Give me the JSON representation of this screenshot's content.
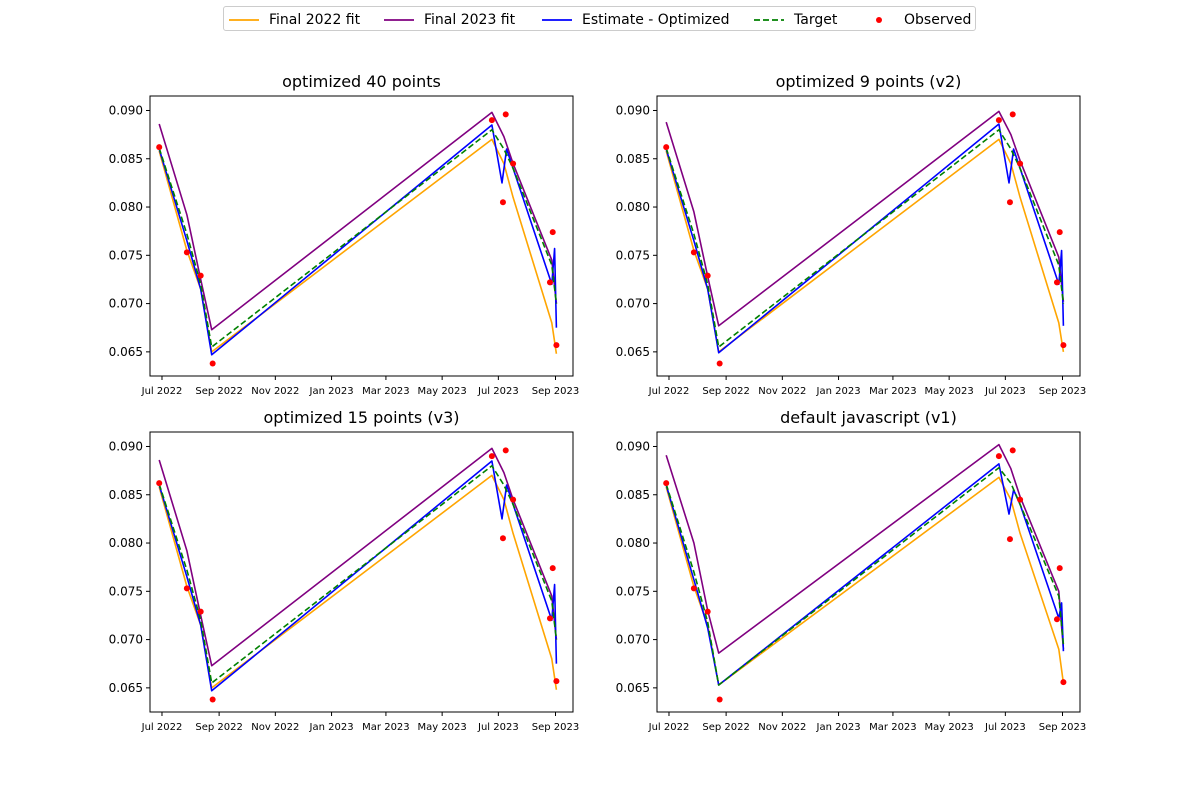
{
  "legend": [
    {
      "label": "Final 2022 fit",
      "color": "#FFA500",
      "style": "solid"
    },
    {
      "label": "Final 2023 fit",
      "color": "#800080",
      "style": "solid"
    },
    {
      "label": "Estimate - Optimized",
      "color": "#0000FF",
      "style": "solid"
    },
    {
      "label": "Target",
      "color": "#008000",
      "style": "dashed"
    },
    {
      "label": "Observed",
      "color": "#FF0000",
      "style": "dot"
    }
  ],
  "chart_data": [
    {
      "type": "line",
      "title": "optimized 40 points",
      "ylim": [
        0.0625,
        0.0915
      ],
      "xlim": [
        "2022-06-18",
        "2023-09-20"
      ],
      "yticks": [
        "0.065",
        "0.070",
        "0.075",
        "0.080",
        "0.085",
        "0.090"
      ],
      "xticks": [
        "Jul 2022",
        "Sep 2022",
        "Nov 2022",
        "Jan 2023",
        "Mar 2023",
        "May 2023",
        "Jul 2023",
        "Sep 2023"
      ],
      "series": [
        {
          "name": "Final 2022 fit",
          "x": [
            "2022-06-28",
            "2022-07-28",
            "2022-08-12",
            "2022-08-24",
            "2023-06-24",
            "2023-07-07",
            "2023-07-17",
            "2023-08-28",
            "2023-09-02"
          ],
          "y": [
            0.0858,
            0.0755,
            0.0715,
            0.065,
            0.087,
            0.0845,
            0.081,
            0.068,
            0.0648
          ]
        },
        {
          "name": "Final 2023 fit",
          "x": [
            "2022-06-28",
            "2022-07-28",
            "2022-08-12",
            "2022-08-24",
            "2023-06-24",
            "2023-07-07",
            "2023-07-17",
            "2023-08-28",
            "2023-09-02"
          ],
          "y": [
            0.0886,
            0.0792,
            0.0725,
            0.0673,
            0.0898,
            0.0873,
            0.0845,
            0.0745,
            0.07
          ]
        },
        {
          "name": "Estimate - Optimized",
          "x": [
            "2022-06-28",
            "2022-07-28",
            "2022-08-12",
            "2022-08-24",
            "2023-06-24",
            "2023-07-05",
            "2023-07-10",
            "2023-07-17",
            "2023-08-28",
            "2023-08-31",
            "2023-09-02"
          ],
          "y": [
            0.086,
            0.0765,
            0.0715,
            0.0647,
            0.0885,
            0.0825,
            0.086,
            0.084,
            0.072,
            0.0757,
            0.0675
          ]
        },
        {
          "name": "Target",
          "x": [
            "2022-06-28",
            "2022-07-28",
            "2022-08-12",
            "2022-08-24",
            "2023-06-24",
            "2023-07-07",
            "2023-07-17",
            "2023-08-28",
            "2023-09-02"
          ],
          "y": [
            0.0861,
            0.0772,
            0.072,
            0.0655,
            0.088,
            0.086,
            0.084,
            0.074,
            0.07
          ]
        }
      ],
      "observed": {
        "name": "Observed",
        "x": [
          "2022-06-28",
          "2022-07-28",
          "2022-08-12",
          "2022-08-25",
          "2023-06-24",
          "2023-07-06",
          "2023-07-09",
          "2023-07-17",
          "2023-08-26",
          "2023-08-29",
          "2023-09-02"
        ],
        "y": [
          0.0862,
          0.0753,
          0.0729,
          0.0638,
          0.089,
          0.0805,
          0.0896,
          0.0845,
          0.0722,
          0.0774,
          0.0657
        ]
      }
    },
    {
      "type": "line",
      "title": "optimized 9 points (v2)",
      "ylim": [
        0.0625,
        0.0915
      ],
      "xlim": [
        "2022-06-18",
        "2023-09-20"
      ],
      "yticks": [
        "0.065",
        "0.070",
        "0.075",
        "0.080",
        "0.085",
        "0.090"
      ],
      "xticks": [
        "Jul 2022",
        "Sep 2022",
        "Nov 2022",
        "Jan 2023",
        "Mar 2023",
        "May 2023",
        "Jul 2023",
        "Sep 2023"
      ],
      "series": [
        {
          "name": "Final 2022 fit",
          "x": [
            "2022-06-28",
            "2022-07-28",
            "2022-08-12",
            "2022-08-24",
            "2023-06-24",
            "2023-07-07",
            "2023-07-17",
            "2023-08-28",
            "2023-09-02"
          ],
          "y": [
            0.0858,
            0.0755,
            0.0715,
            0.065,
            0.087,
            0.0845,
            0.081,
            0.068,
            0.065
          ]
        },
        {
          "name": "Final 2023 fit",
          "x": [
            "2022-06-28",
            "2022-07-28",
            "2022-08-12",
            "2022-08-24",
            "2023-06-24",
            "2023-07-07",
            "2023-07-17",
            "2023-08-28",
            "2023-09-02"
          ],
          "y": [
            0.0888,
            0.0795,
            0.0728,
            0.0677,
            0.0899,
            0.0875,
            0.0848,
            0.0748,
            0.0702
          ]
        },
        {
          "name": "Estimate - Optimized",
          "x": [
            "2022-06-28",
            "2022-07-28",
            "2022-08-12",
            "2022-08-24",
            "2023-06-24",
            "2023-07-05",
            "2023-07-10",
            "2023-07-17",
            "2023-08-28",
            "2023-08-31",
            "2023-09-02"
          ],
          "y": [
            0.086,
            0.0765,
            0.0715,
            0.0649,
            0.0886,
            0.0825,
            0.086,
            0.084,
            0.072,
            0.0755,
            0.0677
          ]
        },
        {
          "name": "Target",
          "x": [
            "2022-06-28",
            "2022-07-28",
            "2022-08-12",
            "2022-08-24",
            "2023-06-24",
            "2023-07-07",
            "2023-07-17",
            "2023-08-28",
            "2023-09-02"
          ],
          "y": [
            0.0861,
            0.0772,
            0.072,
            0.0655,
            0.088,
            0.086,
            0.084,
            0.074,
            0.07
          ]
        }
      ],
      "observed": {
        "name": "Observed",
        "x": [
          "2022-06-28",
          "2022-07-28",
          "2022-08-12",
          "2022-08-25",
          "2023-06-24",
          "2023-07-06",
          "2023-07-09",
          "2023-07-17",
          "2023-08-26",
          "2023-08-29",
          "2023-09-02"
        ],
        "y": [
          0.0862,
          0.0753,
          0.0729,
          0.0638,
          0.089,
          0.0805,
          0.0896,
          0.0845,
          0.0722,
          0.0774,
          0.0657
        ]
      }
    },
    {
      "type": "line",
      "title": "optimized 15 points (v3)",
      "ylim": [
        0.0625,
        0.0915
      ],
      "xlim": [
        "2022-06-18",
        "2023-09-20"
      ],
      "yticks": [
        "0.065",
        "0.070",
        "0.075",
        "0.080",
        "0.085",
        "0.090"
      ],
      "xticks": [
        "Jul 2022",
        "Sep 2022",
        "Nov 2022",
        "Jan 2023",
        "Mar 2023",
        "May 2023",
        "Jul 2023",
        "Sep 2023"
      ],
      "series": [
        {
          "name": "Final 2022 fit",
          "x": [
            "2022-06-28",
            "2022-07-28",
            "2022-08-12",
            "2022-08-24",
            "2023-06-24",
            "2023-07-07",
            "2023-07-17",
            "2023-08-28",
            "2023-09-02"
          ],
          "y": [
            0.0858,
            0.0755,
            0.0715,
            0.065,
            0.087,
            0.0845,
            0.081,
            0.068,
            0.0648
          ]
        },
        {
          "name": "Final 2023 fit",
          "x": [
            "2022-06-28",
            "2022-07-28",
            "2022-08-12",
            "2022-08-24",
            "2023-06-24",
            "2023-07-07",
            "2023-07-17",
            "2023-08-28",
            "2023-09-02"
          ],
          "y": [
            0.0886,
            0.0792,
            0.0725,
            0.0673,
            0.0898,
            0.0873,
            0.0845,
            0.0745,
            0.07
          ]
        },
        {
          "name": "Estimate - Optimized",
          "x": [
            "2022-06-28",
            "2022-07-28",
            "2022-08-12",
            "2022-08-24",
            "2023-06-24",
            "2023-07-05",
            "2023-07-10",
            "2023-07-17",
            "2023-08-28",
            "2023-08-31",
            "2023-09-02"
          ],
          "y": [
            0.086,
            0.0765,
            0.0715,
            0.0647,
            0.0885,
            0.0825,
            0.086,
            0.084,
            0.072,
            0.0757,
            0.0675
          ]
        },
        {
          "name": "Target",
          "x": [
            "2022-06-28",
            "2022-07-28",
            "2022-08-12",
            "2022-08-24",
            "2023-06-24",
            "2023-07-07",
            "2023-07-17",
            "2023-08-28",
            "2023-09-02"
          ],
          "y": [
            0.0861,
            0.0772,
            0.072,
            0.0655,
            0.088,
            0.086,
            0.084,
            0.074,
            0.07
          ]
        }
      ],
      "observed": {
        "name": "Observed",
        "x": [
          "2022-06-28",
          "2022-07-28",
          "2022-08-12",
          "2022-08-25",
          "2023-06-24",
          "2023-07-06",
          "2023-07-09",
          "2023-07-17",
          "2023-08-26",
          "2023-08-29",
          "2023-09-02"
        ],
        "y": [
          0.0862,
          0.0753,
          0.0729,
          0.0638,
          0.089,
          0.0805,
          0.0896,
          0.0845,
          0.0722,
          0.0774,
          0.0657
        ]
      }
    },
    {
      "type": "line",
      "title": "default javascript (v1)",
      "ylim": [
        0.0625,
        0.0915
      ],
      "xlim": [
        "2022-06-18",
        "2023-09-20"
      ],
      "yticks": [
        "0.065",
        "0.070",
        "0.075",
        "0.080",
        "0.085",
        "0.090"
      ],
      "xticks": [
        "Jul 2022",
        "Sep 2022",
        "Nov 2022",
        "Jan 2023",
        "Mar 2023",
        "May 2023",
        "Jul 2023",
        "Sep 2023"
      ],
      "series": [
        {
          "name": "Final 2022 fit",
          "x": [
            "2022-06-28",
            "2022-07-28",
            "2022-08-12",
            "2022-08-24",
            "2023-06-24",
            "2023-07-07",
            "2023-07-17",
            "2023-08-28",
            "2023-09-02"
          ],
          "y": [
            0.0858,
            0.0755,
            0.0715,
            0.0653,
            0.0868,
            0.0845,
            0.081,
            0.069,
            0.0655
          ]
        },
        {
          "name": "Final 2023 fit",
          "x": [
            "2022-06-28",
            "2022-07-28",
            "2022-08-12",
            "2022-08-24",
            "2023-06-24",
            "2023-07-07",
            "2023-07-17",
            "2023-08-28",
            "2023-09-02"
          ],
          "y": [
            0.0891,
            0.08,
            0.073,
            0.0686,
            0.0902,
            0.0877,
            0.0848,
            0.075,
            0.069
          ]
        },
        {
          "name": "Estimate - Optimized",
          "x": [
            "2022-06-28",
            "2022-07-28",
            "2022-08-12",
            "2022-08-24",
            "2023-06-24",
            "2023-07-05",
            "2023-07-10",
            "2023-07-17",
            "2023-08-28",
            "2023-08-31",
            "2023-09-02"
          ],
          "y": [
            0.086,
            0.0762,
            0.0712,
            0.0653,
            0.0882,
            0.083,
            0.0855,
            0.084,
            0.0722,
            0.0738,
            0.0688
          ]
        },
        {
          "name": "Target",
          "x": [
            "2022-06-28",
            "2022-07-28",
            "2022-08-12",
            "2022-08-24",
            "2023-06-24",
            "2023-07-07",
            "2023-07-17",
            "2023-08-28",
            "2023-09-02"
          ],
          "y": [
            0.0861,
            0.077,
            0.0718,
            0.0653,
            0.0878,
            0.0862,
            0.084,
            0.0745,
            0.0695
          ]
        }
      ],
      "observed": {
        "name": "Observed",
        "x": [
          "2022-06-28",
          "2022-07-28",
          "2022-08-12",
          "2022-08-25",
          "2023-06-24",
          "2023-07-06",
          "2023-07-09",
          "2023-07-17",
          "2023-08-26",
          "2023-08-29",
          "2023-09-02"
        ],
        "y": [
          0.0862,
          0.0753,
          0.0729,
          0.0638,
          0.089,
          0.0804,
          0.0896,
          0.0845,
          0.0721,
          0.0774,
          0.0656
        ]
      }
    }
  ]
}
